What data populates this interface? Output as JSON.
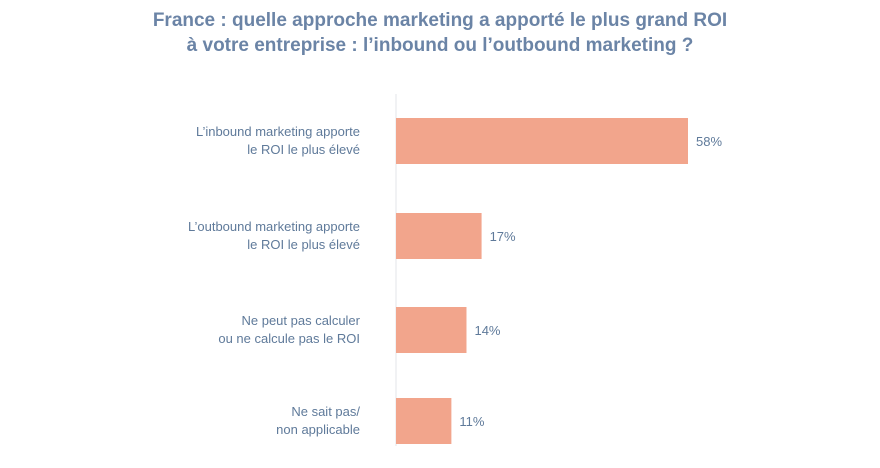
{
  "chart_data": {
    "type": "bar",
    "orientation": "horizontal",
    "title_lines": [
      "France : quelle approche marketing a apporté le plus grand ROI",
      "à votre entreprise : l’inbound ou l’outbound marketing ?"
    ],
    "categories": [
      [
        "L’inbound marketing apporte",
        "le ROI le plus élevé"
      ],
      [
        "L’outbound marketing apporte",
        "le ROI le plus élevé"
      ],
      [
        "Ne peut pas calculer",
        "ou ne calcule pas le ROI"
      ],
      [
        "Ne sait pas/",
        "non applicable"
      ]
    ],
    "values": [
      58,
      17,
      14,
      11
    ],
    "value_labels": [
      "58%",
      "17%",
      "14%",
      "11%"
    ],
    "unit": "%",
    "xlim": [
      0,
      100
    ],
    "bar_color": "#f2a58c",
    "text_color": "#5f7a9a",
    "title_color": "#6b84a6",
    "grid": false,
    "legend": "none"
  }
}
